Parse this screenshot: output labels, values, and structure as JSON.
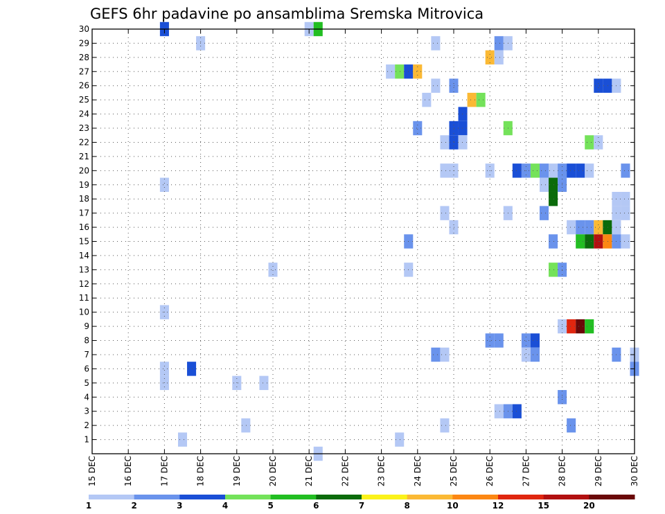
{
  "chart_data": {
    "type": "heatmap",
    "title": "GEFS 6hr padavine po ansamblima Sremska Mitrovica",
    "x_tick_labels": [
      "15 DEC",
      "16 DEC",
      "17 DEC",
      "18 DEC",
      "19 DEC",
      "20 DEC",
      "21 DEC",
      "22 DEC",
      "23 DEC",
      "24 DEC",
      "25 DEC",
      "26 DEC",
      "27 DEC",
      "28 DEC",
      "29 DEC",
      "30 DEC"
    ],
    "y_tick_labels": [
      "1",
      "2",
      "3",
      "4",
      "5",
      "6",
      "7",
      "8",
      "9",
      "10",
      "11",
      "12",
      "13",
      "14",
      "15",
      "16",
      "17",
      "18",
      "19",
      "20",
      "21",
      "22",
      "23",
      "24",
      "25",
      "26",
      "27",
      "28",
      "29",
      "30"
    ],
    "x_unit": "6hr steps from 15 DEC 00Z",
    "xlim": [
      0,
      60
    ],
    "ylim": [
      0,
      30
    ],
    "grid": true,
    "colorbar": {
      "levels": [
        "1",
        "2",
        "3",
        "4",
        "5",
        "6",
        "7",
        "8",
        "10",
        "12",
        "15",
        "20"
      ],
      "colors": [
        "#b4c8f5",
        "#6a93ec",
        "#1a4fd6",
        "#74e25a",
        "#22be22",
        "#0b6b0b",
        "#fbf21a",
        "#fbb934",
        "#fc8713",
        "#e0260f",
        "#b21010",
        "#6a0808"
      ]
    },
    "cells": [
      {
        "x": 8,
        "y": 30,
        "c": 2
      },
      {
        "x": 24,
        "y": 30,
        "c": 0
      },
      {
        "x": 25,
        "y": 30,
        "c": 4
      },
      {
        "x": 12,
        "y": 29,
        "c": 0
      },
      {
        "x": 38,
        "y": 29,
        "c": 0
      },
      {
        "x": 45,
        "y": 29,
        "c": 1
      },
      {
        "x": 46,
        "y": 29,
        "c": 0
      },
      {
        "x": 44,
        "y": 28,
        "c": 7
      },
      {
        "x": 45,
        "y": 28,
        "c": 0
      },
      {
        "x": 33,
        "y": 27,
        "c": 0
      },
      {
        "x": 34,
        "y": 27,
        "c": 3
      },
      {
        "x": 35,
        "y": 27,
        "c": 2
      },
      {
        "x": 36,
        "y": 27,
        "c": 7
      },
      {
        "x": 38,
        "y": 26,
        "c": 0
      },
      {
        "x": 40,
        "y": 26,
        "c": 1
      },
      {
        "x": 56,
        "y": 26,
        "c": 2
      },
      {
        "x": 57,
        "y": 26,
        "c": 2
      },
      {
        "x": 58,
        "y": 26,
        "c": 0
      },
      {
        "x": 37,
        "y": 25,
        "c": 0
      },
      {
        "x": 42,
        "y": 25,
        "c": 7
      },
      {
        "x": 43,
        "y": 25,
        "c": 3
      },
      {
        "x": 41,
        "y": 24,
        "c": 2
      },
      {
        "x": 36,
        "y": 23,
        "c": 1
      },
      {
        "x": 40,
        "y": 23,
        "c": 2
      },
      {
        "x": 41,
        "y": 23,
        "c": 2
      },
      {
        "x": 46,
        "y": 23,
        "c": 3
      },
      {
        "x": 39,
        "y": 22,
        "c": 0
      },
      {
        "x": 40,
        "y": 22,
        "c": 2
      },
      {
        "x": 41,
        "y": 22,
        "c": 0
      },
      {
        "x": 55,
        "y": 22,
        "c": 3
      },
      {
        "x": 56,
        "y": 22,
        "c": 0
      },
      {
        "x": 39,
        "y": 20,
        "c": 0
      },
      {
        "x": 40,
        "y": 20,
        "c": 0
      },
      {
        "x": 44,
        "y": 20,
        "c": 0
      },
      {
        "x": 47,
        "y": 20,
        "c": 2
      },
      {
        "x": 48,
        "y": 20,
        "c": 1
      },
      {
        "x": 49,
        "y": 20,
        "c": 3
      },
      {
        "x": 50,
        "y": 20,
        "c": 1
      },
      {
        "x": 51,
        "y": 20,
        "c": 0
      },
      {
        "x": 52,
        "y": 20,
        "c": 1
      },
      {
        "x": 53,
        "y": 20,
        "c": 2
      },
      {
        "x": 54,
        "y": 20,
        "c": 2
      },
      {
        "x": 55,
        "y": 20,
        "c": 0
      },
      {
        "x": 59,
        "y": 20,
        "c": 1
      },
      {
        "x": 8,
        "y": 19,
        "c": 0
      },
      {
        "x": 50,
        "y": 19,
        "c": 0
      },
      {
        "x": 51,
        "y": 19,
        "c": 5
      },
      {
        "x": 52,
        "y": 19,
        "c": 1
      },
      {
        "x": 51,
        "y": 18,
        "c": 5
      },
      {
        "x": 58,
        "y": 18,
        "c": 0
      },
      {
        "x": 59,
        "y": 18,
        "c": 0
      },
      {
        "x": 39,
        "y": 17,
        "c": 0
      },
      {
        "x": 46,
        "y": 17,
        "c": 0
      },
      {
        "x": 50,
        "y": 17,
        "c": 1
      },
      {
        "x": 58,
        "y": 17,
        "c": 0
      },
      {
        "x": 59,
        "y": 17,
        "c": 0
      },
      {
        "x": 40,
        "y": 16,
        "c": 0
      },
      {
        "x": 53,
        "y": 16,
        "c": 0
      },
      {
        "x": 54,
        "y": 16,
        "c": 1
      },
      {
        "x": 55,
        "y": 16,
        "c": 1
      },
      {
        "x": 56,
        "y": 16,
        "c": 7
      },
      {
        "x": 57,
        "y": 16,
        "c": 5
      },
      {
        "x": 58,
        "y": 16,
        "c": 0
      },
      {
        "x": 35,
        "y": 15,
        "c": 1
      },
      {
        "x": 51,
        "y": 15,
        "c": 1
      },
      {
        "x": 54,
        "y": 15,
        "c": 4
      },
      {
        "x": 55,
        "y": 15,
        "c": 5
      },
      {
        "x": 56,
        "y": 15,
        "c": 10
      },
      {
        "x": 57,
        "y": 15,
        "c": 8
      },
      {
        "x": 58,
        "y": 15,
        "c": 1
      },
      {
        "x": 59,
        "y": 15,
        "c": 0
      },
      {
        "x": 20,
        "y": 13,
        "c": 0
      },
      {
        "x": 35,
        "y": 13,
        "c": 0
      },
      {
        "x": 51,
        "y": 13,
        "c": 3
      },
      {
        "x": 52,
        "y": 13,
        "c": 1
      },
      {
        "x": 8,
        "y": 10,
        "c": 0
      },
      {
        "x": 52,
        "y": 9,
        "c": 0
      },
      {
        "x": 53,
        "y": 9,
        "c": 9
      },
      {
        "x": 54,
        "y": 9,
        "c": 11
      },
      {
        "x": 55,
        "y": 9,
        "c": 4
      },
      {
        "x": 44,
        "y": 8,
        "c": 1
      },
      {
        "x": 45,
        "y": 8,
        "c": 1
      },
      {
        "x": 48,
        "y": 8,
        "c": 1
      },
      {
        "x": 49,
        "y": 8,
        "c": 2
      },
      {
        "x": 38,
        "y": 7,
        "c": 1
      },
      {
        "x": 39,
        "y": 7,
        "c": 0
      },
      {
        "x": 48,
        "y": 7,
        "c": 0
      },
      {
        "x": 49,
        "y": 7,
        "c": 1
      },
      {
        "x": 58,
        "y": 7,
        "c": 1
      },
      {
        "x": 60,
        "y": 7,
        "c": 0
      },
      {
        "x": 8,
        "y": 6,
        "c": 0
      },
      {
        "x": 11,
        "y": 6,
        "c": 2
      },
      {
        "x": 60,
        "y": 6,
        "c": 1
      },
      {
        "x": 8,
        "y": 5,
        "c": 0
      },
      {
        "x": 16,
        "y": 5,
        "c": 0
      },
      {
        "x": 19,
        "y": 5,
        "c": 0
      },
      {
        "x": 52,
        "y": 4,
        "c": 1
      },
      {
        "x": 45,
        "y": 3,
        "c": 0
      },
      {
        "x": 46,
        "y": 3,
        "c": 1
      },
      {
        "x": 47,
        "y": 3,
        "c": 2
      },
      {
        "x": 17,
        "y": 2,
        "c": 0
      },
      {
        "x": 39,
        "y": 2,
        "c": 0
      },
      {
        "x": 53,
        "y": 2,
        "c": 1
      },
      {
        "x": 10,
        "y": 1,
        "c": 0
      },
      {
        "x": 34,
        "y": 1,
        "c": 0
      },
      {
        "x": 25,
        "y": 0,
        "c": 0
      }
    ]
  }
}
